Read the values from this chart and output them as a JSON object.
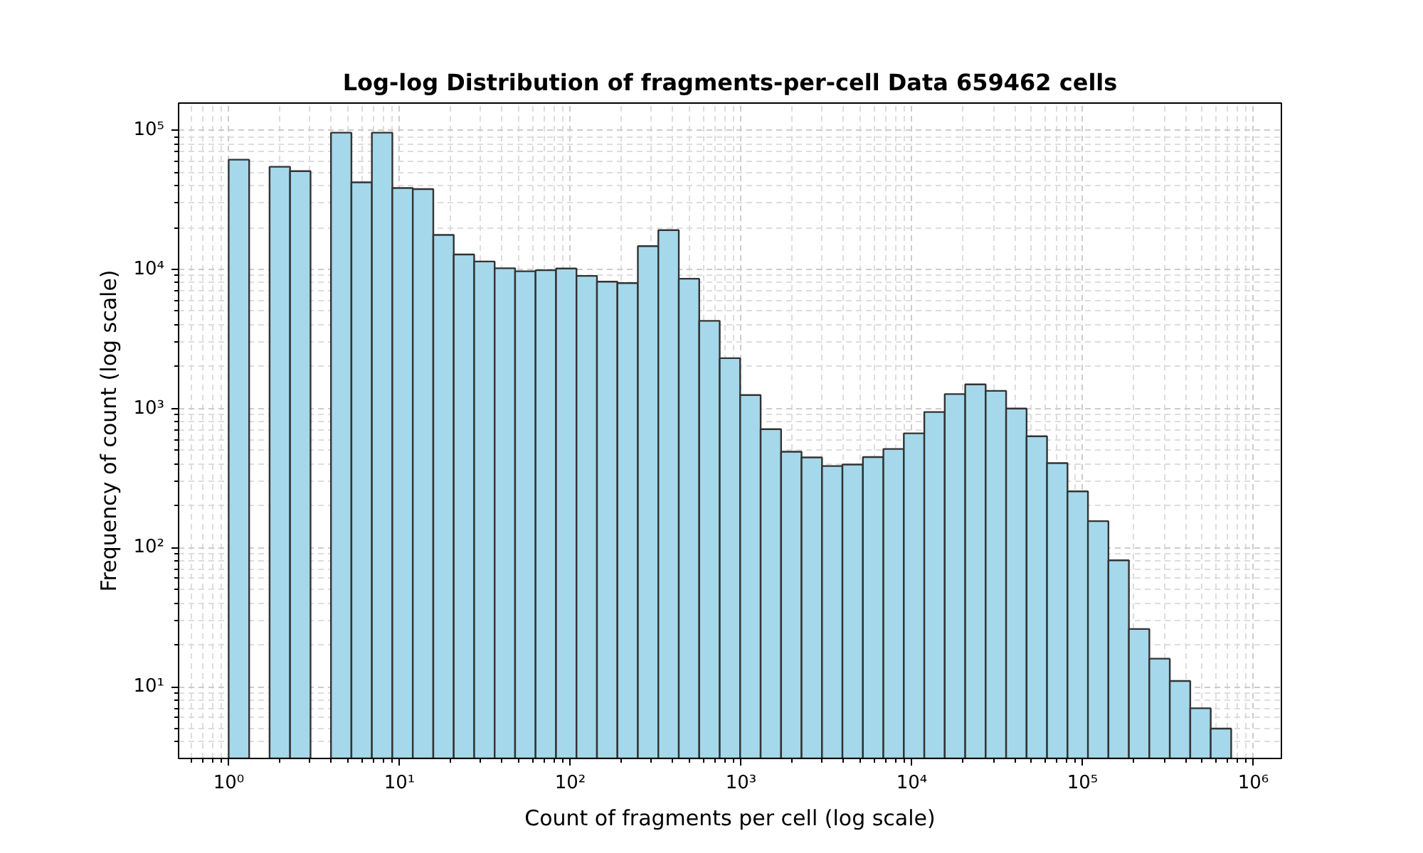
{
  "chart_data": {
    "type": "histogram",
    "title": "Log-log Distribution of fragments-per-cell Data 659462 cells",
    "xlabel": "Count of fragments per cell (log scale)",
    "ylabel": "Frequency of count (log scale)",
    "log": "xy",
    "grid": true,
    "color": "#a5d8eb",
    "bins": [
      1,
      1.318,
      1.736,
      2.288,
      3.015,
      3.972,
      5.233,
      6.896,
      9.087,
      11.97,
      15.78,
      20.79,
      27.39,
      36.09,
      47.56,
      62.66,
      82.57,
      108.8,
      143.4,
      188.9,
      248.9,
      328.0,
      432.2,
      569.4,
      750.3,
      988.6,
      1303,
      1717,
      2262,
      2981,
      3926,
      5174,
      6818,
      8983,
      11837,
      15596,
      20551,
      27077,
      35679,
      47012,
      61944,
      81621,
      107550,
      141710,
      186720,
      246040,
      324190,
      427170,
      562860,
      741650
    ],
    "values": [
      61500,
      null,
      54700,
      50900,
      null,
      96200,
      42300,
      96200,
      38500,
      37800,
      17700,
      12800,
      11400,
      10200,
      9700,
      9870,
      10150,
      8980,
      8170,
      7980,
      14700,
      19150,
      8570,
      4270,
      2300,
      1250,
      711,
      489,
      445,
      386,
      396,
      448,
      512,
      663,
      944,
      1270,
      1490,
      1340,
      1000,
      632,
      405,
      254,
      155,
      81,
      26,
      15.9,
      11,
      7.0,
      5.0
    ],
    "xlim": [
      0.509,
      1460000
    ],
    "ylim": [
      3.05,
      157000
    ],
    "xticks": [
      {
        "value": 0.6,
        "label": null
      },
      {
        "value": 0.7,
        "label": null
      },
      {
        "value": 0.8,
        "label": null
      },
      {
        "value": 0.9,
        "label": null
      },
      {
        "value": 1,
        "label": "10⁰"
      },
      {
        "value": 2,
        "label": null
      },
      {
        "value": 3,
        "label": null
      },
      {
        "value": 4,
        "label": null
      },
      {
        "value": 5,
        "label": null
      },
      {
        "value": 6,
        "label": null
      },
      {
        "value": 7,
        "label": null
      },
      {
        "value": 8,
        "label": null
      },
      {
        "value": 9,
        "label": null
      },
      {
        "value": 10,
        "label": "10¹"
      },
      {
        "value": 20,
        "label": null
      },
      {
        "value": 30,
        "label": null
      },
      {
        "value": 40,
        "label": null
      },
      {
        "value": 50,
        "label": null
      },
      {
        "value": 60,
        "label": null
      },
      {
        "value": 70,
        "label": null
      },
      {
        "value": 80,
        "label": null
      },
      {
        "value": 90,
        "label": null
      },
      {
        "value": 100,
        "label": "10²"
      },
      {
        "value": 200,
        "label": null
      },
      {
        "value": 300,
        "label": null
      },
      {
        "value": 400,
        "label": null
      },
      {
        "value": 500,
        "label": null
      },
      {
        "value": 600,
        "label": null
      },
      {
        "value": 700,
        "label": null
      },
      {
        "value": 800,
        "label": null
      },
      {
        "value": 900,
        "label": null
      },
      {
        "value": 1000,
        "label": "10³"
      },
      {
        "value": 2000,
        "label": null
      },
      {
        "value": 3000,
        "label": null
      },
      {
        "value": 4000,
        "label": null
      },
      {
        "value": 5000,
        "label": null
      },
      {
        "value": 6000,
        "label": null
      },
      {
        "value": 7000,
        "label": null
      },
      {
        "value": 8000,
        "label": null
      },
      {
        "value": 9000,
        "label": null
      },
      {
        "value": 10000,
        "label": "10⁴"
      },
      {
        "value": 20000,
        "label": null
      },
      {
        "value": 30000,
        "label": null
      },
      {
        "value": 40000,
        "label": null
      },
      {
        "value": 50000,
        "label": null
      },
      {
        "value": 60000,
        "label": null
      },
      {
        "value": 70000,
        "label": null
      },
      {
        "value": 80000,
        "label": null
      },
      {
        "value": 90000,
        "label": null
      },
      {
        "value": 100000,
        "label": "10⁵"
      },
      {
        "value": 200000,
        "label": null
      },
      {
        "value": 300000,
        "label": null
      },
      {
        "value": 400000,
        "label": null
      },
      {
        "value": 500000,
        "label": null
      },
      {
        "value": 600000,
        "label": null
      },
      {
        "value": 700000,
        "label": null
      },
      {
        "value": 800000,
        "label": null
      },
      {
        "value": 900000,
        "label": null
      },
      {
        "value": 1000000,
        "label": "10⁶"
      }
    ],
    "yticks": [
      {
        "value": 4,
        "label": null
      },
      {
        "value": 5,
        "label": null
      },
      {
        "value": 6,
        "label": null
      },
      {
        "value": 7,
        "label": null
      },
      {
        "value": 8,
        "label": null
      },
      {
        "value": 9,
        "label": null
      },
      {
        "value": 10,
        "label": "10¹"
      },
      {
        "value": 20,
        "label": null
      },
      {
        "value": 30,
        "label": null
      },
      {
        "value": 40,
        "label": null
      },
      {
        "value": 50,
        "label": null
      },
      {
        "value": 60,
        "label": null
      },
      {
        "value": 70,
        "label": null
      },
      {
        "value": 80,
        "label": null
      },
      {
        "value": 90,
        "label": null
      },
      {
        "value": 100,
        "label": "10²"
      },
      {
        "value": 200,
        "label": null
      },
      {
        "value": 300,
        "label": null
      },
      {
        "value": 400,
        "label": null
      },
      {
        "value": 500,
        "label": null
      },
      {
        "value": 600,
        "label": null
      },
      {
        "value": 700,
        "label": null
      },
      {
        "value": 800,
        "label": null
      },
      {
        "value": 900,
        "label": null
      },
      {
        "value": 1000,
        "label": "10³"
      },
      {
        "value": 2000,
        "label": null
      },
      {
        "value": 3000,
        "label": null
      },
      {
        "value": 4000,
        "label": null
      },
      {
        "value": 5000,
        "label": null
      },
      {
        "value": 6000,
        "label": null
      },
      {
        "value": 7000,
        "label": null
      },
      {
        "value": 8000,
        "label": null
      },
      {
        "value": 9000,
        "label": null
      },
      {
        "value": 10000,
        "label": "10⁴"
      },
      {
        "value": 20000,
        "label": null
      },
      {
        "value": 30000,
        "label": null
      },
      {
        "value": 40000,
        "label": null
      },
      {
        "value": 50000,
        "label": null
      },
      {
        "value": 60000,
        "label": null
      },
      {
        "value": 70000,
        "label": null
      },
      {
        "value": 80000,
        "label": null
      },
      {
        "value": 90000,
        "label": null
      },
      {
        "value": 100000,
        "label": "10⁵"
      }
    ]
  }
}
